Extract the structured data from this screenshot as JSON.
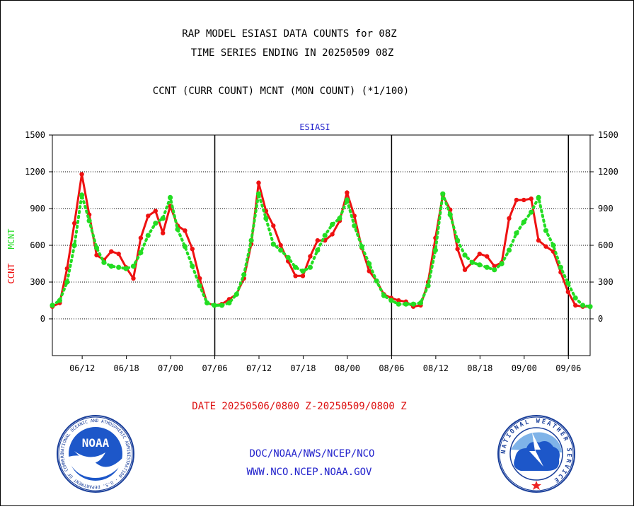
{
  "header": {
    "title_line1": "RAP MODEL ESIASI DATA COUNTS for 08Z",
    "title_line2": "TIME SERIES ENDING IN 20250509 08Z",
    "subtitle": "CCNT (CURR COUNT) MCNT (MON COUNT) (*1/100)"
  },
  "footer": {
    "date_range": "DATE 20250506/0800 Z-20250509/0800 Z",
    "org_line": "DOC/NOAA/NWS/NCEP/NCO",
    "url": "WWW.NCO.NCEP.NOAA.GOV"
  },
  "logos": {
    "noaa_text": "NOAA",
    "noaa_ring_text": "NATIONAL OCEANIC AND ATMOSPHERIC ADMINISTRATION · U.S. DEPARTMENT OF COMMERCE",
    "nws_ring_text": "NATIONAL WEATHER SERVICE"
  },
  "colors": {
    "ccnt": "#ee1111",
    "mcnt": "#22dd22",
    "title": "#000000",
    "date_text": "#dd1111",
    "link_text": "#2222cc",
    "plot_title": "#2222cc"
  },
  "chart_data": {
    "type": "line",
    "plot_title": "ESIASI",
    "ylabel_ccnt": "CCNT",
    "ylabel_mcnt": "MCNT",
    "ylim": [
      -300,
      1500
    ],
    "y_ticks": [
      0,
      300,
      600,
      900,
      1200,
      1500
    ],
    "y_tick_labels": [
      "0",
      "300",
      "600",
      "900",
      "1200",
      "1500"
    ],
    "x_tick_labels": [
      "06/12",
      "06/18",
      "07/00",
      "07/06",
      "07/12",
      "07/18",
      "08/00",
      "08/06",
      "08/12",
      "08/18",
      "09/00",
      "09/06"
    ],
    "grid": "horizontal dotted",
    "day_boundaries": [
      "07/06",
      "08/06",
      "09/06"
    ],
    "series": [
      {
        "name": "CCNT",
        "values": [
          100,
          130,
          410,
          780,
          1180,
          850,
          520,
          480,
          550,
          530,
          420,
          330,
          660,
          840,
          880,
          700,
          920,
          760,
          720,
          570,
          330,
          130,
          110,
          120,
          160,
          200,
          330,
          610,
          1110,
          880,
          760,
          600,
          470,
          350,
          350,
          510,
          640,
          640,
          690,
          800,
          1030,
          840,
          580,
          390,
          310,
          200,
          170,
          150,
          140,
          100,
          110,
          300,
          660,
          1010,
          890,
          570,
          400,
          460,
          530,
          510,
          430,
          460,
          820,
          970,
          970,
          980,
          640,
          590,
          550,
          380,
          220,
          110,
          100,
          100
        ]
      },
      {
        "name": "MCNT",
        "values": [
          110,
          150,
          300,
          600,
          1010,
          800,
          580,
          460,
          430,
          420,
          410,
          430,
          540,
          680,
          780,
          820,
          990,
          730,
          590,
          430,
          270,
          130,
          110,
          110,
          130,
          200,
          360,
          640,
          1020,
          820,
          610,
          560,
          500,
          420,
          390,
          420,
          560,
          680,
          770,
          820,
          970,
          760,
          590,
          450,
          310,
          190,
          150,
          120,
          120,
          120,
          130,
          270,
          560,
          1020,
          850,
          640,
          520,
          460,
          440,
          420,
          400,
          450,
          560,
          700,
          790,
          870,
          990,
          720,
          600,
          420,
          290,
          170,
          110,
          100
        ]
      }
    ]
  }
}
